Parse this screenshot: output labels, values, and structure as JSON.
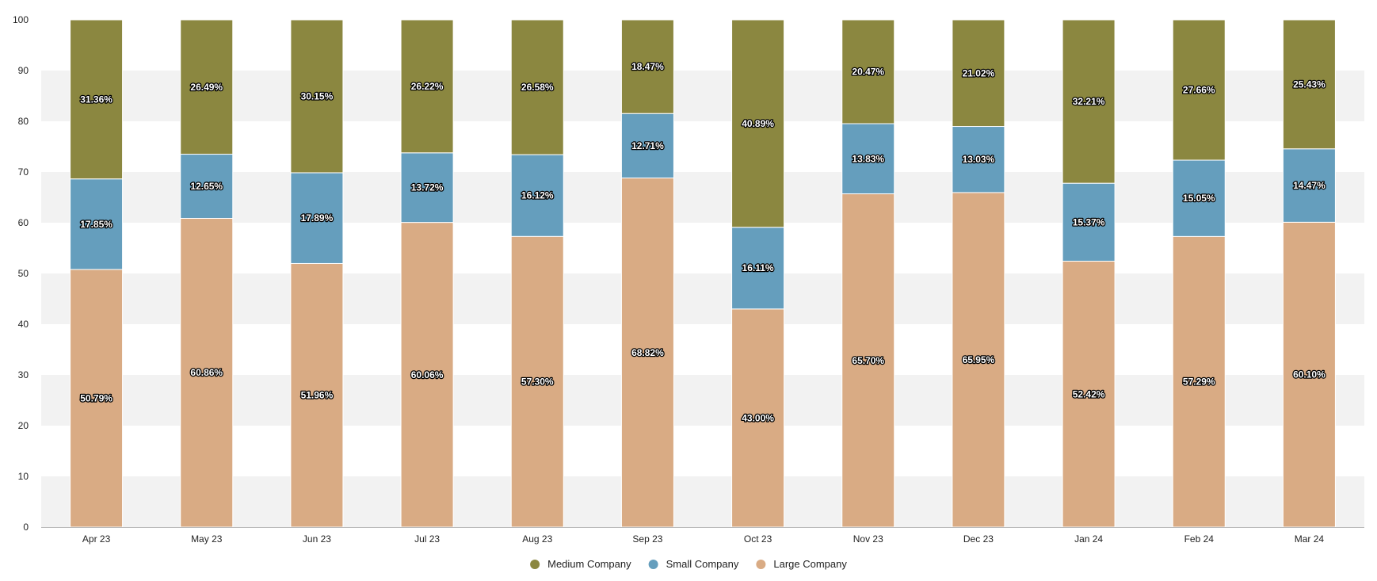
{
  "chart_data": {
    "type": "bar",
    "stacked": true,
    "title": "",
    "xlabel": "",
    "ylabel": "",
    "ylim": [
      0,
      100
    ],
    "yticks": [
      0,
      10,
      20,
      30,
      40,
      50,
      60,
      70,
      80,
      90,
      100
    ],
    "grid": "alternating horizontal bands",
    "legend_position": "bottom-center",
    "categories": [
      "Apr 23",
      "May 23",
      "Jun 23",
      "Jul 23",
      "Aug 23",
      "Sep 23",
      "Oct 23",
      "Nov 23",
      "Dec 23",
      "Jan 24",
      "Feb 24",
      "Mar 24"
    ],
    "series": [
      {
        "name": "Large Company",
        "color": "#d9ab84",
        "values": [
          50.79,
          60.86,
          51.96,
          60.06,
          57.3,
          68.82,
          43.0,
          65.7,
          65.95,
          52.42,
          57.29,
          60.1
        ],
        "labels": [
          "50.79%",
          "60.86%",
          "51.96%",
          "60.06%",
          "57.30%",
          "68.82%",
          "43.00%",
          "65.70%",
          "65.95%",
          "52.42%",
          "57.29%",
          "60.10%"
        ]
      },
      {
        "name": "Small Company",
        "color": "#659ebd",
        "values": [
          17.85,
          12.65,
          17.89,
          13.72,
          16.12,
          12.71,
          16.11,
          13.83,
          13.03,
          15.37,
          15.05,
          14.47
        ],
        "labels": [
          "17.85%",
          "12.65%",
          "17.89%",
          "13.72%",
          "16.12%",
          "12.71%",
          "16.11%",
          "13.83%",
          "13.03%",
          "15.37%",
          "15.05%",
          "14.47%"
        ]
      },
      {
        "name": "Medium Company",
        "color": "#8b8740",
        "values": [
          31.36,
          26.49,
          30.15,
          26.22,
          26.58,
          18.47,
          40.89,
          20.47,
          21.02,
          32.21,
          27.66,
          25.43
        ],
        "labels": [
          "31.36%",
          "26.49%",
          "30.15%",
          "26.22%",
          "26.58%",
          "18.47%",
          "40.89%",
          "20.47%",
          "21.02%",
          "32.21%",
          "27.66%",
          "25.43%"
        ]
      }
    ],
    "legend_order": [
      "Medium Company",
      "Small Company",
      "Large Company"
    ]
  }
}
